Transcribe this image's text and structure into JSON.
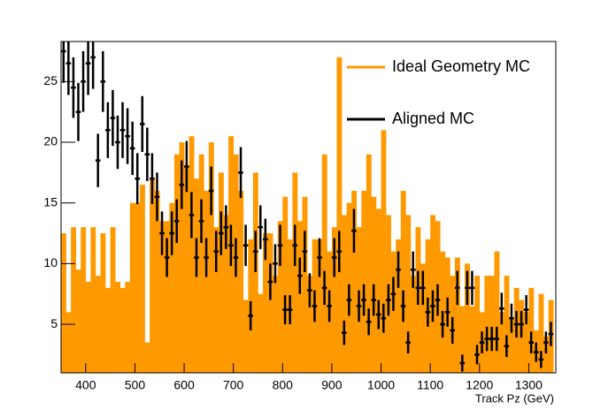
{
  "chart_data": {
    "type": "histogram",
    "xlabel": "Track Pz (GeV)",
    "bins": [
      350,
      360,
      370,
      380,
      390,
      400,
      410,
      420,
      430,
      440,
      450,
      460,
      470,
      480,
      490,
      500,
      510,
      520,
      530,
      540,
      550,
      560,
      570,
      580,
      590,
      600,
      610,
      620,
      630,
      640,
      650,
      660,
      670,
      680,
      690,
      700,
      710,
      720,
      730,
      740,
      750,
      760,
      770,
      780,
      790,
      800,
      810,
      820,
      830,
      840,
      850,
      860,
      870,
      880,
      890,
      900,
      910,
      920,
      930,
      940,
      950,
      960,
      970,
      980,
      990,
      1000,
      1010,
      1020,
      1030,
      1040,
      1050,
      1060,
      1070,
      1080,
      1090,
      1100,
      1110,
      1120,
      1130,
      1140,
      1150,
      1160,
      1170,
      1180,
      1190,
      1200,
      1210,
      1220,
      1230,
      1240,
      1250,
      1260,
      1270,
      1280,
      1290,
      1300,
      1310,
      1320,
      1330,
      1340,
      1350
    ],
    "series": [
      {
        "name": "Ideal Geometry MC",
        "color": "#ff9900",
        "style": "filled",
        "values": [
          12.5,
          6,
          13,
          9.5,
          13,
          8.5,
          13,
          9,
          12.5,
          8,
          13,
          8.5,
          8,
          8.5,
          15,
          15,
          16.5,
          3.5,
          17,
          16,
          13.5,
          13.5,
          15,
          19,
          20,
          18,
          20.5,
          17,
          19,
          16,
          20,
          13,
          17.5,
          14,
          20.5,
          19,
          16,
          7,
          12,
          17.5,
          7.5,
          12.5,
          12.5,
          9,
          13.5,
          15.5,
          12,
          17.5,
          13.5,
          15.5,
          9,
          12,
          12,
          19,
          11,
          13,
          27,
          14,
          15,
          16,
          13,
          16,
          19,
          15.5,
          14.5,
          21,
          14,
          11,
          12,
          16,
          14,
          9,
          13,
          10,
          12,
          14,
          13.5,
          11,
          10.5,
          9,
          10.5,
          6.5,
          10,
          6.5,
          9,
          6,
          9,
          9,
          11,
          6,
          9,
          5.5,
          8,
          7,
          6,
          8,
          4.5,
          7.5,
          4,
          7
        ]
      },
      {
        "name": "Aligned MC",
        "color": "#000000",
        "style": "points",
        "values": [
          27.5,
          26.5,
          24.5,
          22.5,
          25,
          26.5,
          27,
          18.5,
          25,
          21,
          22,
          20,
          21,
          20.5,
          19.5,
          17,
          21.5,
          19,
          17,
          15.5,
          12.5,
          10.5,
          12.5,
          13.5,
          16.5,
          18,
          14,
          10.5,
          13.5,
          10.5,
          16,
          11,
          12.5,
          13,
          11.5,
          10.5,
          17.5,
          11.5,
          5.7,
          11,
          13,
          12,
          8.5,
          10,
          11.5,
          6.2,
          6.2,
          11.5,
          9,
          11,
          7.8,
          6.5,
          10.5,
          8,
          6.5,
          10.5,
          11,
          4.3,
          7,
          12.7,
          6.5,
          7,
          5.2,
          7,
          5.8,
          5.5,
          7,
          7.5,
          9.5,
          6.5,
          3.5,
          9.5,
          8,
          8,
          6,
          6.5,
          7,
          5,
          6,
          4.5,
          8,
          1.8,
          8,
          8,
          2.5,
          3.5,
          3.8,
          3.8,
          3.8,
          6.3,
          3.2,
          5.5,
          5,
          5,
          6.2,
          3.5,
          2.7,
          2.1,
          3.5,
          4.2
        ],
        "errors": [
          2.6,
          2.6,
          2.5,
          2.4,
          2.5,
          2.6,
          2.6,
          2.2,
          2.5,
          2.3,
          2.3,
          2.2,
          2.3,
          2.3,
          2.2,
          2.1,
          2.3,
          2.2,
          2.1,
          2.0,
          1.8,
          1.6,
          1.8,
          1.8,
          2.0,
          2.1,
          1.9,
          1.6,
          1.8,
          1.6,
          2.0,
          1.7,
          1.8,
          1.8,
          1.7,
          1.6,
          2.1,
          1.7,
          1.2,
          1.7,
          1.8,
          1.7,
          1.5,
          1.6,
          1.7,
          1.2,
          1.2,
          1.7,
          1.5,
          1.7,
          1.4,
          1.3,
          1.6,
          1.4,
          1.3,
          1.6,
          1.7,
          1.0,
          1.3,
          1.8,
          1.3,
          1.3,
          1.1,
          1.3,
          1.2,
          1.2,
          1.3,
          1.4,
          1.5,
          1.3,
          0.9,
          1.5,
          1.4,
          1.4,
          1.2,
          1.3,
          1.3,
          1.1,
          1.2,
          1.1,
          1.4,
          0.7,
          1.4,
          1.4,
          0.8,
          0.9,
          1.0,
          1.0,
          1.0,
          1.3,
          0.9,
          1.2,
          1.1,
          1.1,
          1.2,
          0.9,
          0.8,
          0.7,
          0.9,
          1.0
        ]
      }
    ],
    "xlim": [
      350,
      1355
    ],
    "ylim": [
      1,
      28.3
    ],
    "xticks": [
      400,
      500,
      600,
      700,
      800,
      900,
      1000,
      1100,
      1200,
      1300
    ],
    "yticks": [
      5,
      10,
      15,
      20,
      25
    ],
    "legend": "top-right"
  }
}
